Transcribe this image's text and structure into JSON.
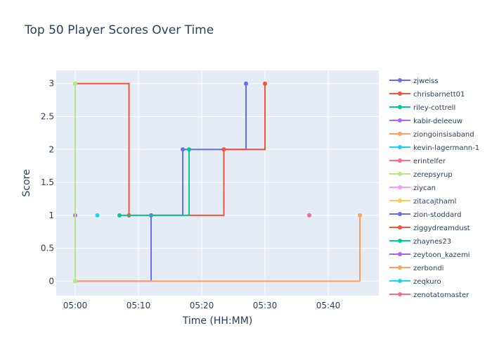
{
  "chart_data": {
    "type": "line",
    "title": "Top 50 Player Scores Over Time",
    "xlabel": "Time (HH:MM)",
    "ylabel": "Score",
    "x_unit": "HH:MM",
    "xlim": [
      "04:57",
      "05:48"
    ],
    "ylim": [
      -0.22,
      3.2
    ],
    "x_ticks": [
      "05:00",
      "05:10",
      "05:20",
      "05:30",
      "05:40"
    ],
    "y_ticks": [
      "0",
      "0.5",
      "1",
      "1.5",
      "2",
      "2.5",
      "3"
    ],
    "grid": true,
    "legend_position": "right",
    "line_shape": "step-after",
    "series": [
      {
        "name": "zjweiss",
        "color": "#636efa",
        "points": [
          [
            "05:00",
            0
          ],
          [
            "05:12",
            1
          ],
          [
            "05:17",
            2
          ],
          [
            "05:27",
            3
          ]
        ]
      },
      {
        "name": "chrisbarnett01",
        "color": "#EF553B",
        "points": [
          [
            "05:00",
            3
          ],
          [
            "05:08:30",
            1
          ],
          [
            "05:23:30",
            2
          ],
          [
            "05:30",
            3
          ]
        ]
      },
      {
        "name": "riley-cottrell",
        "color": "#00cc96",
        "points": [
          [
            "05:07",
            1
          ],
          [
            "05:18",
            2
          ]
        ]
      },
      {
        "name": "kabir-deleeuw",
        "color": "#ab63fa",
        "points": [
          [
            "05:00",
            1
          ]
        ]
      },
      {
        "name": "ziongoinsisaband",
        "color": "#FFA15A",
        "points": [
          [
            "05:00",
            0
          ],
          [
            "05:45",
            1
          ]
        ]
      },
      {
        "name": "kevin-lagermann-1",
        "color": "#19d3f3",
        "points": [
          [
            "05:03:30",
            1
          ]
        ]
      },
      {
        "name": "erintelfer",
        "color": "#FF6692",
        "points": [
          [
            "05:37",
            1
          ]
        ]
      },
      {
        "name": "zerepsyrup",
        "color": "#B6E880",
        "points": [
          [
            "05:00",
            3
          ],
          [
            "05:00",
            0
          ]
        ]
      },
      {
        "name": "ziycan",
        "color": "#FF97FF",
        "points": []
      },
      {
        "name": "zitacajthaml",
        "color": "#FECB52",
        "points": []
      },
      {
        "name": "zion-stoddard",
        "color": "#636efa",
        "points": []
      },
      {
        "name": "ziggydreamdust",
        "color": "#EF553B",
        "points": []
      },
      {
        "name": "zhaynes23",
        "color": "#00cc96",
        "points": []
      },
      {
        "name": "zeytoon_kazemi",
        "color": "#ab63fa",
        "points": []
      },
      {
        "name": "zerbondi",
        "color": "#FFA15A",
        "points": []
      },
      {
        "name": "zeqkuro",
        "color": "#19d3f3",
        "points": []
      },
      {
        "name": "zenotatomaster",
        "color": "#FF6692",
        "points": []
      }
    ]
  }
}
